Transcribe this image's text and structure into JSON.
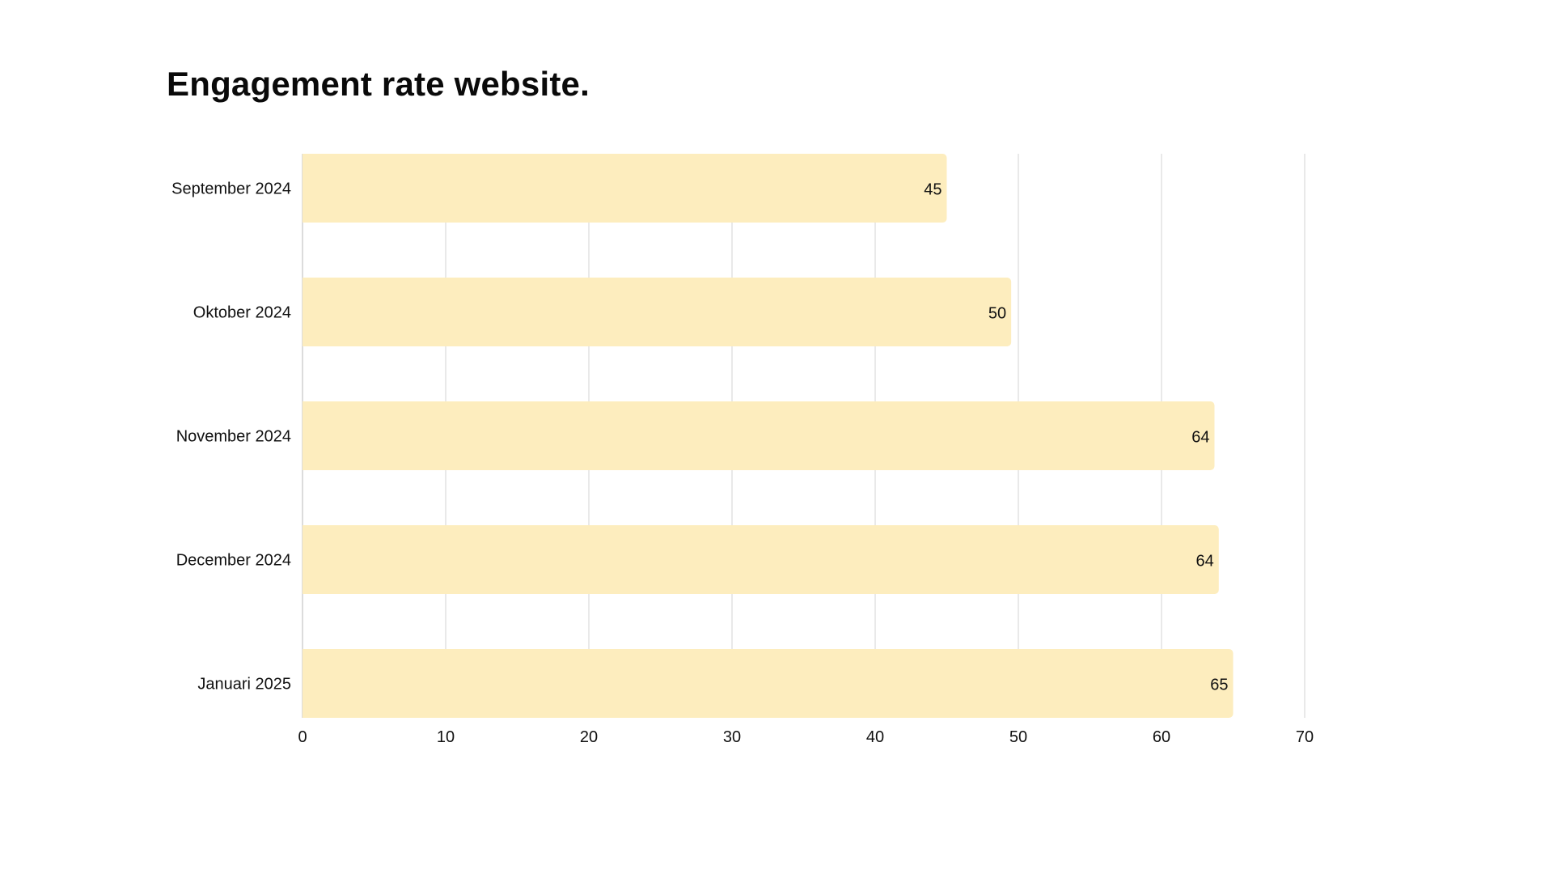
{
  "chart_data": {
    "type": "bar",
    "orientation": "horizontal",
    "title": "Engagement rate website.",
    "xlabel": "",
    "ylabel": "",
    "categories": [
      "September 2024",
      "Oktober 2024",
      "November 2024",
      "December 2024",
      "Januari 2025"
    ],
    "values": [
      45,
      49.5,
      63.7,
      64,
      65
    ],
    "data_labels": [
      "45",
      "50",
      "64",
      "64",
      "65"
    ],
    "xlim": [
      0,
      70
    ],
    "xticks": [
      "0",
      "10",
      "20",
      "30",
      "40",
      "50",
      "60",
      "70"
    ],
    "grid": "vertical",
    "legend": "none",
    "bar_color": "#FDEDBE",
    "grid_color": "#E2E2E2"
  }
}
